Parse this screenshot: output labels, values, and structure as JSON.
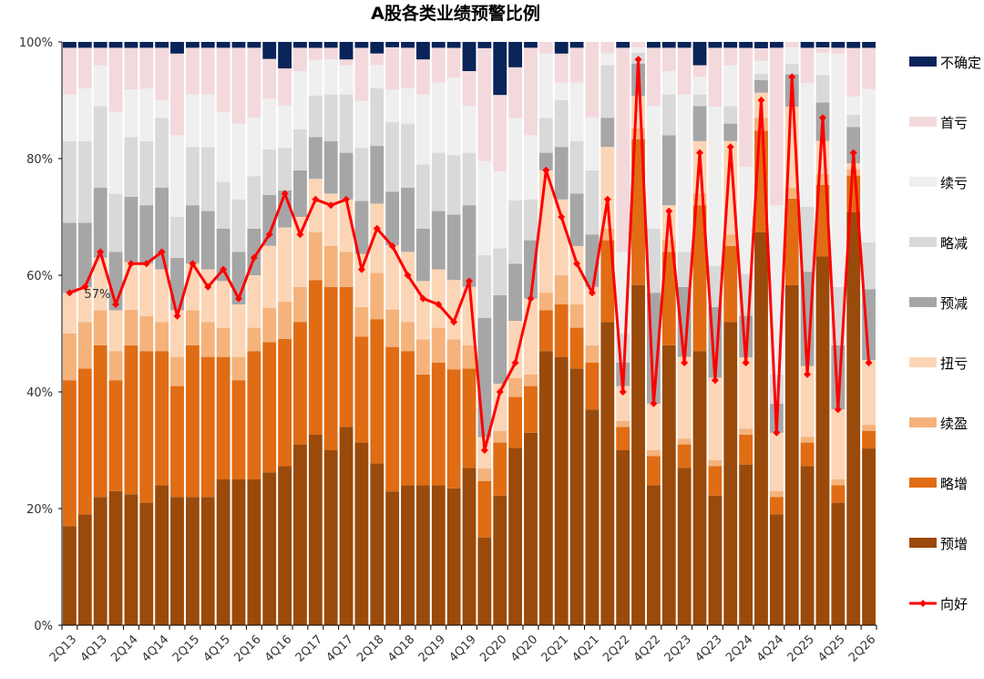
{
  "chart_data": {
    "type": "bar",
    "stacked": true,
    "title": "A股各类业绩预警比例",
    "ylim": [
      0,
      100
    ],
    "yticks": [
      "0%",
      "20%",
      "40%",
      "60%",
      "80%",
      "100%"
    ],
    "grid": false,
    "legend_position": "right",
    "categories": [
      "2Q13",
      "3Q13",
      "4Q13",
      "1Q14",
      "2Q14",
      "3Q14",
      "4Q14",
      "1Q15",
      "2Q15",
      "3Q15",
      "4Q15",
      "1Q16",
      "2Q16",
      "3Q16",
      "4Q16",
      "1Q17",
      "2Q17",
      "3Q17",
      "4Q17",
      "1Q18",
      "2Q18",
      "3Q18",
      "4Q18",
      "1Q19",
      "2Q19",
      "3Q19",
      "4Q19",
      "1Q20",
      "2Q20",
      "3Q20",
      "4Q20",
      "1Q21",
      "2Q21",
      "3Q21",
      "4Q21",
      "1Q22",
      "2Q22",
      "3Q22",
      "4Q22",
      "1Q23",
      "2Q23",
      "3Q23",
      "4Q23",
      "1Q24",
      "2Q24",
      "3Q24",
      "4Q24",
      "1Q25",
      "2Q25",
      "3Q25",
      "4Q25",
      "1Q26",
      "2Q26"
    ],
    "xtick_labels": [
      "2Q13",
      "4Q13",
      "2Q14",
      "4Q14",
      "2Q15",
      "4Q15",
      "2Q16",
      "4Q16",
      "2Q17",
      "4Q17",
      "2Q18",
      "4Q18",
      "2Q19",
      "4Q19",
      "2Q20",
      "4Q20",
      "2Q21",
      "4Q21",
      "2Q22",
      "4Q22",
      "2Q23",
      "4Q23",
      "2Q24",
      "4Q24",
      "2Q25",
      "4Q25",
      "2Q26"
    ],
    "series": [
      {
        "name": "预增",
        "color": "#9a4a0a",
        "values": [
          17,
          19,
          22,
          23,
          22,
          21,
          24,
          22,
          22,
          22,
          25,
          25,
          25,
          27,
          30,
          31,
          32,
          30,
          34,
          31,
          28,
          25,
          24,
          24,
          24,
          23,
          27,
          14,
          22,
          28,
          33,
          47,
          46,
          44,
          37,
          52,
          30,
          63,
          24,
          48,
          27,
          47,
          22,
          52,
          27,
          62,
          19,
          63,
          27,
          67,
          21,
          68,
          30
        ]
      },
      {
        "name": "略增",
        "color": "#e06c14",
        "values": [
          25,
          25,
          26,
          19,
          25,
          26,
          23,
          19,
          26,
          24,
          21,
          17,
          22,
          23,
          24,
          21,
          26,
          28,
          24,
          18,
          25,
          27,
          23,
          19,
          21,
          20,
          17,
          9,
          9,
          8,
          8,
          7,
          9,
          7,
          8,
          14,
          4,
          27,
          5,
          16,
          4,
          25,
          5,
          13,
          5,
          16,
          3,
          16,
          4,
          13,
          3,
          6,
          3
        ]
      },
      {
        "name": "续盈",
        "color": "#f5b27a",
        "values": [
          8,
          8,
          6,
          5,
          6,
          6,
          5,
          5,
          6,
          6,
          5,
          4,
          4,
          6,
          7,
          6,
          8,
          7,
          6,
          5,
          8,
          7,
          5,
          6,
          6,
          5,
          4,
          2,
          2,
          3,
          2,
          3,
          5,
          4,
          3,
          2,
          1,
          2,
          1,
          2,
          1,
          2,
          1,
          2,
          1,
          2,
          1,
          2,
          1,
          2,
          1,
          1,
          1
        ]
      },
      {
        "name": "扭亏",
        "color": "#fbd5b5",
        "values": [
          7,
          6,
          9,
          7,
          8,
          9,
          9,
          8,
          8,
          9,
          8,
          9,
          9,
          11,
          14,
          12,
          9,
          9,
          9,
          9,
          12,
          12,
          12,
          10,
          10,
          10,
          10,
          5,
          8,
          9,
          13,
          21,
          13,
          10,
          10,
          14,
          6,
          6,
          8,
          6,
          14,
          9,
          14,
          16,
          12,
          4,
          10,
          15,
          12,
          6,
          12,
          1,
          11
        ]
      },
      {
        "name": "预减",
        "color": "#a6a6a6",
        "values": [
          12,
          11,
          12,
          10,
          11,
          10,
          14,
          9,
          10,
          10,
          9,
          9,
          8,
          9,
          7,
          8,
          7,
          9,
          8,
          9,
          10,
          10,
          11,
          9,
          10,
          11,
          14,
          19,
          15,
          9,
          10,
          3,
          9,
          9,
          9,
          5,
          4,
          6,
          19,
          12,
          12,
          6,
          12,
          3,
          7,
          2,
          5,
          6,
          16,
          7,
          11,
          6,
          12
        ]
      },
      {
        "name": "略减",
        "color": "#d9d9d9",
        "values": [
          14,
          14,
          14,
          10,
          10,
          11,
          12,
          7,
          10,
          11,
          8,
          9,
          9,
          8,
          8,
          7,
          7,
          8,
          10,
          9,
          10,
          13,
          11,
          11,
          10,
          10,
          9,
          10,
          8,
          10,
          7,
          6,
          8,
          9,
          11,
          9,
          5,
          2,
          11,
          7,
          6,
          2,
          7,
          3,
          7,
          1,
          5,
          2,
          11,
          5,
          10,
          2,
          8
        ]
      },
      {
        "name": "续亏",
        "color": "#efefef",
        "values": [
          8,
          9,
          7,
          14,
          8,
          9,
          3,
          14,
          9,
          9,
          12,
          13,
          10,
          9,
          8,
          10,
          6,
          6,
          5,
          8,
          4,
          6,
          6,
          12,
          12,
          13,
          8,
          15,
          13,
          13,
          11,
          11,
          3,
          10,
          9,
          2,
          14,
          1,
          21,
          4,
          27,
          3,
          27,
          7,
          18,
          2,
          29,
          3,
          21,
          4,
          40,
          3,
          26
        ]
      },
      {
        "name": "首亏",
        "color": "#f3d9dc",
        "values": [
          8,
          7,
          3,
          11,
          7,
          7,
          9,
          14,
          8,
          8,
          11,
          13,
          12,
          7,
          7,
          4,
          2,
          2,
          1,
          9,
          2,
          8,
          7,
          6,
          6,
          5,
          6,
          18,
          13,
          8,
          15,
          2,
          5,
          6,
          13,
          2,
          35,
          1,
          10,
          4,
          8,
          2,
          10,
          3,
          20,
          2,
          27,
          1,
          6,
          1,
          1,
          8,
          7
        ]
      },
      {
        "name": "不确定",
        "color": "#0a2359",
        "values": [
          1,
          1,
          1,
          1,
          1,
          1,
          1,
          2,
          1,
          1,
          1,
          1,
          1,
          3,
          5,
          1,
          1,
          1,
          3,
          1,
          2,
          1,
          1,
          3,
          1,
          1,
          5,
          1,
          9,
          4,
          1,
          0,
          2,
          1,
          0,
          0,
          1,
          0,
          1,
          1,
          1,
          4,
          1,
          1,
          1,
          1,
          1,
          0,
          1,
          1,
          1,
          1,
          1
        ]
      }
    ],
    "line": {
      "name": "向好",
      "color": "#ff0000",
      "values": [
        57,
        58,
        64,
        55,
        62,
        62,
        64,
        53,
        62,
        58,
        61,
        56,
        63,
        67,
        74,
        67,
        73,
        72,
        73,
        61,
        68,
        65,
        60,
        56,
        55,
        52,
        59,
        30,
        40,
        45,
        56,
        78,
        70,
        62,
        57,
        73,
        40,
        97,
        38,
        71,
        45,
        81,
        42,
        82,
        45,
        90,
        33,
        94,
        43,
        87,
        37,
        81,
        45
      ]
    },
    "annotations": [
      {
        "category": "2Q13",
        "text": "57%"
      }
    ]
  }
}
